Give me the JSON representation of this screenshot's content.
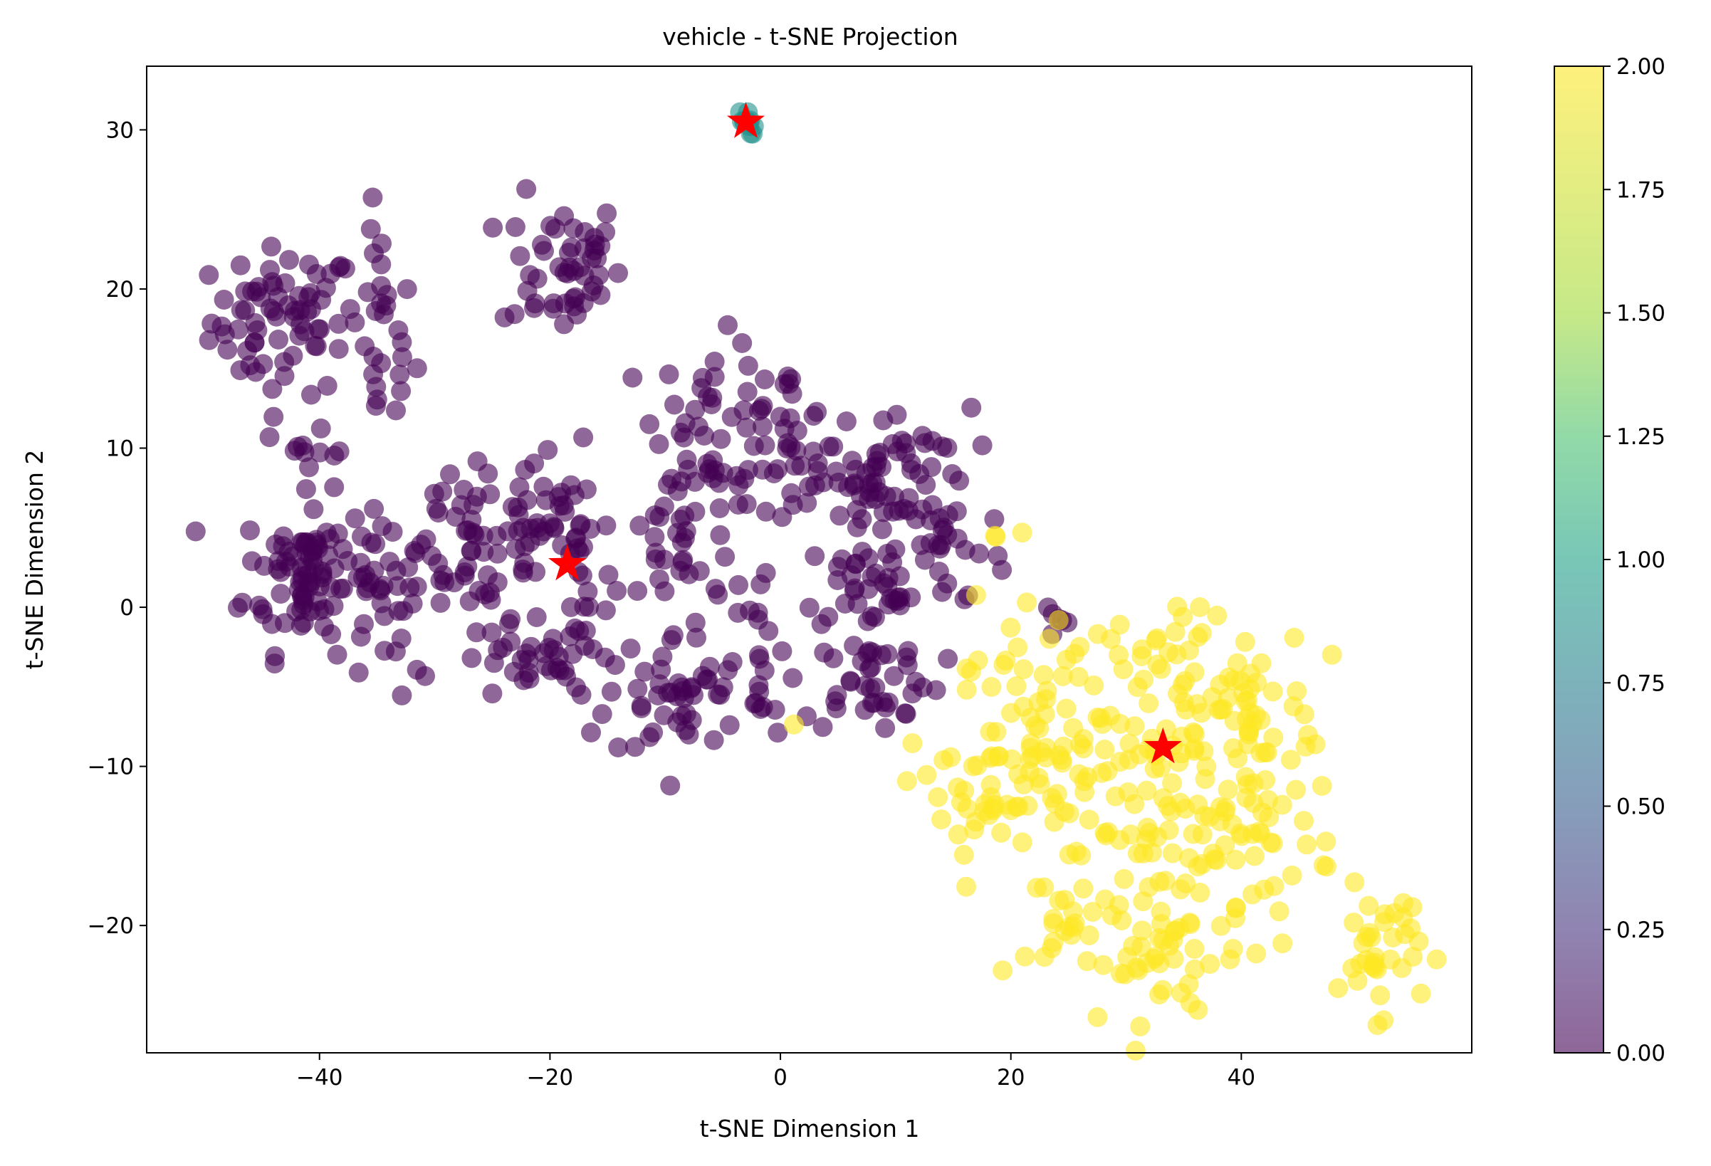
{
  "chart_data": {
    "type": "scatter",
    "title": "vehicle - t-SNE Projection",
    "xlabel": "t-SNE Dimension 1",
    "ylabel": "t-SNE Dimension 2",
    "xlim": [
      -55,
      60
    ],
    "ylim": [
      -28,
      34
    ],
    "xticks": [
      -40,
      -20,
      0,
      20,
      40
    ],
    "yticks": [
      -20,
      -10,
      0,
      10,
      20,
      30
    ],
    "grid": false,
    "colormap": "viridis",
    "colorbar": {
      "range": [
        0.0,
        2.0
      ],
      "ticks": [
        "0.00",
        "0.25",
        "0.50",
        "0.75",
        "1.00",
        "1.25",
        "1.50",
        "1.75",
        "2.00"
      ],
      "alpha": 0.6
    },
    "colors": {
      "cluster_0": "#440154",
      "cluster_1": "#21918c",
      "cluster_2": "#fde725",
      "centroid": "#ff0000"
    },
    "point_alpha": 0.6,
    "series": [
      {
        "cluster": 0,
        "regions": [
          {
            "cx": -43,
            "cy": 18,
            "sx": 3.2,
            "sy": 2.3,
            "n": 70
          },
          {
            "cx": -34.5,
            "cy": 17,
            "sx": 1.4,
            "sy": 3.5,
            "n": 28
          },
          {
            "cx": -19,
            "cy": 21.5,
            "sx": 2.6,
            "sy": 2.2,
            "n": 50
          },
          {
            "cx": -41,
            "cy": 2,
            "sx": 2.8,
            "sy": 2.4,
            "n": 90
          },
          {
            "cx": -40,
            "cy": 10.5,
            "sx": 1.5,
            "sy": 0.8,
            "n": 10
          },
          {
            "cx": -33,
            "cy": 2,
            "sx": 3.5,
            "sy": 1.8,
            "n": 40
          },
          {
            "cx": -27,
            "cy": 4.5,
            "sx": 2.6,
            "sy": 2.0,
            "n": 30
          },
          {
            "cx": -21,
            "cy": 5,
            "sx": 3.0,
            "sy": 2.5,
            "n": 45
          },
          {
            "cx": -16.5,
            "cy": 1.5,
            "sx": 1.4,
            "sy": 2.8,
            "n": 18
          },
          {
            "cx": -22,
            "cy": -3.5,
            "sx": 3.2,
            "sy": 1.3,
            "n": 35
          },
          {
            "cx": -31,
            "cy": -5,
            "sx": 0.7,
            "sy": 0.6,
            "n": 3
          },
          {
            "cx": -8,
            "cy": 4,
            "sx": 2.8,
            "sy": 3.0,
            "n": 40
          },
          {
            "cx": -6,
            "cy": 12,
            "sx": 2.4,
            "sy": 2.4,
            "n": 35
          },
          {
            "cx": 0,
            "cy": 11,
            "sx": 2.2,
            "sy": 2.2,
            "n": 30
          },
          {
            "cx": 3,
            "cy": 8.5,
            "sx": 2.5,
            "sy": 1.5,
            "n": 20
          },
          {
            "cx": 10.5,
            "cy": 9.5,
            "sx": 3.0,
            "sy": 1.5,
            "n": 30
          },
          {
            "cx": 7.5,
            "cy": 6.5,
            "sx": 2.5,
            "sy": 1.4,
            "n": 20
          },
          {
            "cx": 14.5,
            "cy": 4,
            "sx": 2.5,
            "sy": 1.8,
            "n": 25
          },
          {
            "cx": 8.5,
            "cy": 1.5,
            "sx": 3.5,
            "sy": 1.6,
            "n": 40
          },
          {
            "cx": -9,
            "cy": -5.5,
            "sx": 3.0,
            "sy": 2.0,
            "n": 50
          },
          {
            "cx": 8,
            "cy": -4.5,
            "sx": 3.0,
            "sy": 1.6,
            "n": 40
          },
          {
            "cx": -2,
            "cy": -5,
            "sx": 1.5,
            "sy": 1.5,
            "n": 12
          },
          {
            "cx": -3,
            "cy": 0,
            "sx": 0.8,
            "sy": 0.8,
            "n": 6
          },
          {
            "cx": 23.5,
            "cy": -1.5,
            "sx": 0.6,
            "sy": 1.4,
            "n": 6
          }
        ]
      },
      {
        "cluster": 1,
        "regions": [
          {
            "cx": -3,
            "cy": 30.5,
            "sx": 0.4,
            "sy": 0.4,
            "n": 12
          }
        ]
      },
      {
        "cluster": 2,
        "regions": [
          {
            "cx": 22,
            "cy": -5,
            "sx": 3.0,
            "sy": 3.0,
            "n": 40
          },
          {
            "cx": 17.5,
            "cy": -12,
            "sx": 3.0,
            "sy": 2.5,
            "n": 40
          },
          {
            "cx": 25,
            "cy": -11.5,
            "sx": 3.0,
            "sy": 2.5,
            "n": 35
          },
          {
            "cx": 26,
            "cy": -20,
            "sx": 3.0,
            "sy": 2.2,
            "n": 30
          },
          {
            "cx": 34,
            "cy": -4,
            "sx": 2.4,
            "sy": 2.4,
            "n": 35
          },
          {
            "cx": 40,
            "cy": -6,
            "sx": 3.0,
            "sy": 2.5,
            "n": 35
          },
          {
            "cx": 35,
            "cy": -14,
            "sx": 4.0,
            "sy": 3.2,
            "n": 70
          },
          {
            "cx": 42,
            "cy": -13,
            "sx": 3.0,
            "sy": 4.0,
            "n": 50
          },
          {
            "cx": 34,
            "cy": -22,
            "sx": 2.5,
            "sy": 2.0,
            "n": 30
          },
          {
            "cx": 52,
            "cy": -21.5,
            "sx": 1.8,
            "sy": 2.0,
            "n": 35
          },
          {
            "cx": 19,
            "cy": 4.5,
            "sx": 1.0,
            "sy": 0.5,
            "n": 3
          },
          {
            "cx": 1.2,
            "cy": -7.3,
            "sx": 0.1,
            "sy": 0.1,
            "n": 1
          }
        ]
      }
    ],
    "centroids": [
      {
        "x": -18.5,
        "y": 2.7
      },
      {
        "x": -3.0,
        "y": 30.5
      },
      {
        "x": 33.2,
        "y": -8.8
      }
    ]
  }
}
